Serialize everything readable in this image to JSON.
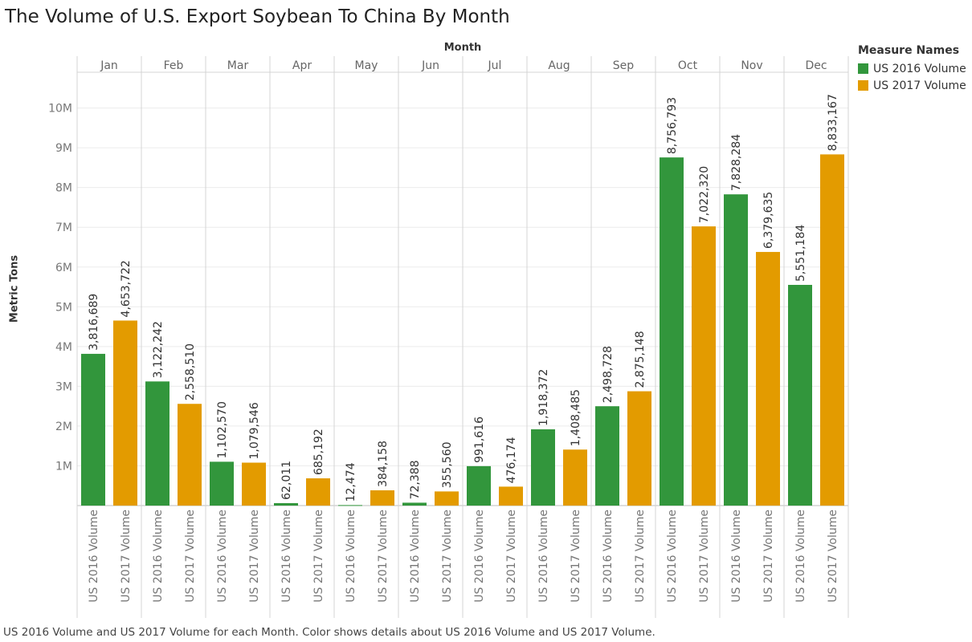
{
  "title": "The Volume of U.S. Export Soybean To China By Month",
  "x_header": "Month",
  "legend": {
    "title": "Measure Names",
    "items": [
      {
        "label": "US 2016 Volume",
        "color": "#32963c"
      },
      {
        "label": "US 2017 Volume",
        "color": "#e39b00"
      }
    ]
  },
  "caption": "US 2016 Volume and US 2017 Volume for each Month.  Color shows details about US 2016 Volume and US 2017 Volume.",
  "chart_data": {
    "type": "bar",
    "title": "The Volume of U.S. Export Soybean To China By Month",
    "xlabel": "Month",
    "ylabel": "Metric Tons",
    "categories": [
      "Jan",
      "Feb",
      "Mar",
      "Apr",
      "May",
      "Jun",
      "Jul",
      "Aug",
      "Sep",
      "Oct",
      "Nov",
      "Dec"
    ],
    "series": [
      {
        "name": "US 2016 Volume",
        "color": "#32963c",
        "values": [
          3816689,
          3122242,
          1102570,
          62011,
          12474,
          72388,
          991616,
          1918372,
          2498728,
          8756793,
          7828284,
          5551184
        ]
      },
      {
        "name": "US 2017 Volume",
        "color": "#e39b00",
        "values": [
          4653722,
          2558510,
          1079546,
          685192,
          384158,
          355560,
          476174,
          1408485,
          2875148,
          7022320,
          6379635,
          8833167
        ]
      }
    ],
    "y_ticks": [
      1000000,
      2000000,
      3000000,
      4000000,
      5000000,
      6000000,
      7000000,
      8000000,
      9000000,
      10000000
    ],
    "y_tick_labels": [
      "1M",
      "2M",
      "3M",
      "4M",
      "5M",
      "6M",
      "7M",
      "8M",
      "9M",
      "10M"
    ],
    "ylim": [
      0,
      10900000
    ],
    "grid": true,
    "legend_position": "top-right"
  }
}
